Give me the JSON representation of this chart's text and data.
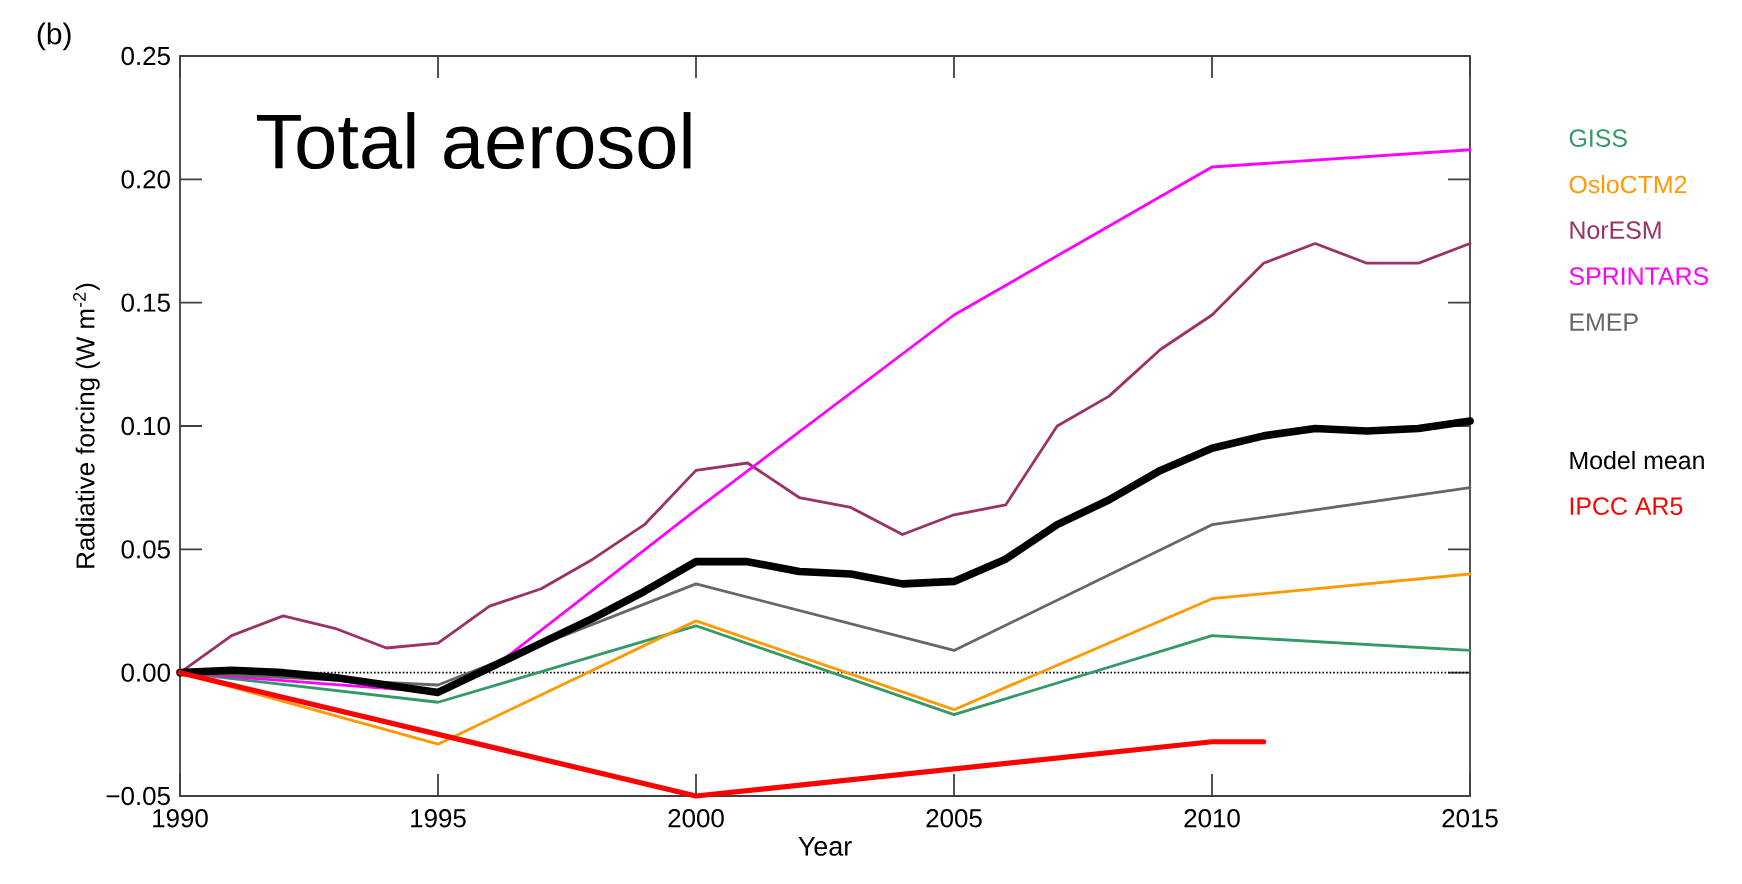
{
  "chart_data": {
    "type": "line",
    "title": "Total aerosol",
    "xlabel": "Year",
    "ylabel": "Radiative forcing (W m$^{-2}$)",
    "annotations": [
      "(b)"
    ],
    "x": [
      1990,
      1991,
      1992,
      1993,
      1994,
      1995,
      1996,
      1997,
      1998,
      1999,
      2000,
      2001,
      2002,
      2003,
      2004,
      2005,
      2006,
      2007,
      2008,
      2009,
      2010,
      2011,
      2012,
      2013,
      2014,
      2015
    ],
    "xlim": [
      1990,
      2015
    ],
    "xticks": [
      1990,
      1995,
      2000,
      2005,
      2010,
      2015
    ],
    "ylim": [
      -0.05,
      0.25
    ],
    "yticks": [
      {
        "value": -0.05,
        "label": "−0.05"
      },
      {
        "value": 0,
        "label": "0.00"
      },
      0.05,
      {
        "value": 0.1,
        "label": "0.10"
      },
      0.15,
      {
        "value": 0.2,
        "label": "0.20"
      },
      0.25
    ],
    "ref_lines": [
      {
        "axis": "y",
        "value": 0,
        "color": "#000000",
        "line_style": "dotted"
      }
    ],
    "legend": "right",
    "series": [
      {
        "name": "GISS",
        "color": "#339966",
        "x": [
          1990,
          1995,
          2000,
          2005,
          2010,
          2015
        ],
        "values": [
          0,
          -0.012,
          0.019,
          -0.017,
          0.015,
          0.009
        ]
      },
      {
        "name": "OsloCTM2",
        "color": "#ff9900",
        "x": [
          1990,
          1995,
          2000,
          2005,
          2010,
          2015
        ],
        "values": [
          0,
          -0.029,
          0.021,
          -0.015,
          0.03,
          0.04
        ]
      },
      {
        "name": "NorESM",
        "color": "#993366",
        "values": [
          0,
          0.015,
          0.023,
          0.018,
          0.01,
          0.012,
          0.027,
          0.034,
          0.046,
          0.06,
          0.082,
          0.085,
          0.071,
          0.067,
          0.056,
          0.064,
          0.068,
          0.1,
          0.112,
          0.131,
          0.145,
          0.166,
          0.174,
          0.166,
          0.166,
          0.174
        ]
      },
      {
        "name": "SPRINTARS",
        "color": "#ff00ff",
        "x": [
          1990,
          1995,
          1996,
          2000,
          2005,
          2010,
          2015
        ],
        "values": [
          0,
          -0.008,
          0.001,
          0.066,
          0.145,
          0.205,
          0.212
        ]
      },
      {
        "name": "EMEP",
        "color": "#666666",
        "x": [
          1990,
          1995,
          2000,
          2005,
          2010,
          2015
        ],
        "values": [
          0,
          -0.005,
          0.036,
          0.009,
          0.06,
          0.075
        ]
      },
      {
        "name": "Model mean",
        "color": "#000000",
        "values": [
          0,
          0.001,
          0.0,
          -0.002,
          -0.005,
          -0.008,
          0.002,
          0.012,
          0.022,
          0.033,
          0.045,
          0.045,
          0.041,
          0.04,
          0.036,
          0.037,
          0.046,
          0.06,
          0.07,
          0.082,
          0.091,
          0.096,
          0.099,
          0.098,
          0.099,
          0.102
        ]
      },
      {
        "name": "IPCC AR5",
        "color": "#ff0000",
        "x": [
          1990,
          2000,
          2010,
          2011
        ],
        "values": [
          0,
          -0.05,
          -0.028,
          -0.028
        ]
      }
    ]
  }
}
